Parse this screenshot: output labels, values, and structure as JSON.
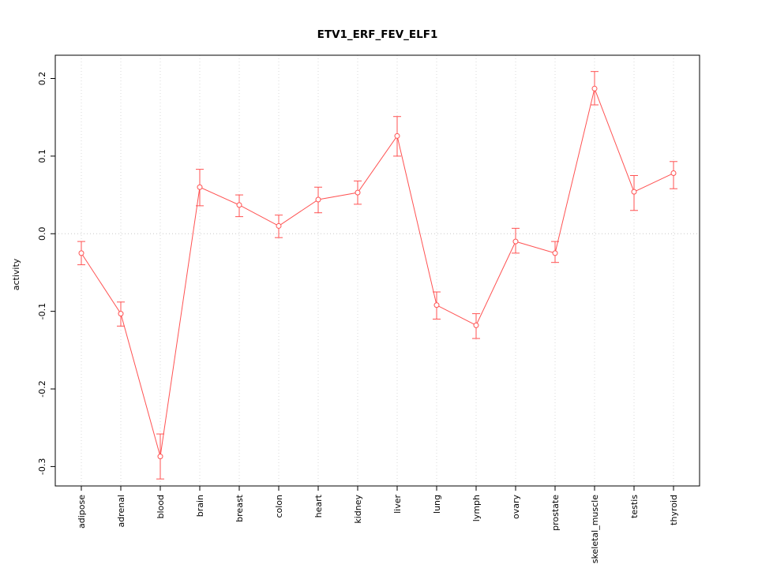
{
  "chart_data": {
    "type": "line",
    "title": "ETV1_ERF_FEV_ELF1",
    "xlabel": "",
    "ylabel": "activity",
    "categories": [
      "adipose",
      "adrenal",
      "blood",
      "brain",
      "breast",
      "colon",
      "heart",
      "kidney",
      "liver",
      "lung",
      "lymph",
      "ovary",
      "prostate",
      "skeletal_muscle",
      "testis",
      "thyroid"
    ],
    "series": [
      {
        "name": "activity",
        "values": [
          -0.025,
          -0.103,
          -0.287,
          0.06,
          0.037,
          0.01,
          0.044,
          0.053,
          0.126,
          -0.092,
          -0.118,
          -0.01,
          -0.025,
          0.187,
          0.054,
          0.078
        ],
        "error_low": [
          -0.04,
          -0.119,
          -0.316,
          0.036,
          0.022,
          -0.005,
          0.027,
          0.038,
          0.1,
          -0.11,
          -0.135,
          -0.025,
          -0.037,
          0.166,
          0.03,
          0.058
        ],
        "error_high": [
          -0.01,
          -0.088,
          -0.258,
          0.083,
          0.05,
          0.024,
          0.06,
          0.068,
          0.151,
          -0.075,
          -0.103,
          0.007,
          -0.01,
          0.209,
          0.075,
          0.093
        ]
      }
    ],
    "yticks": [
      -0.3,
      -0.2,
      -0.1,
      0.0,
      0.1,
      0.2
    ],
    "ylim": [
      -0.325,
      0.23
    ],
    "grid": "dotted vertical gridlines at each category, dotted horizontal line at 0",
    "legend_position": "none",
    "marker": "open-circle with error bars",
    "colors": {
      "series": "#ff5252",
      "gridline": "#d9d9d9",
      "zero_line": "#c8c8c8",
      "axis_box": "#000000"
    }
  }
}
